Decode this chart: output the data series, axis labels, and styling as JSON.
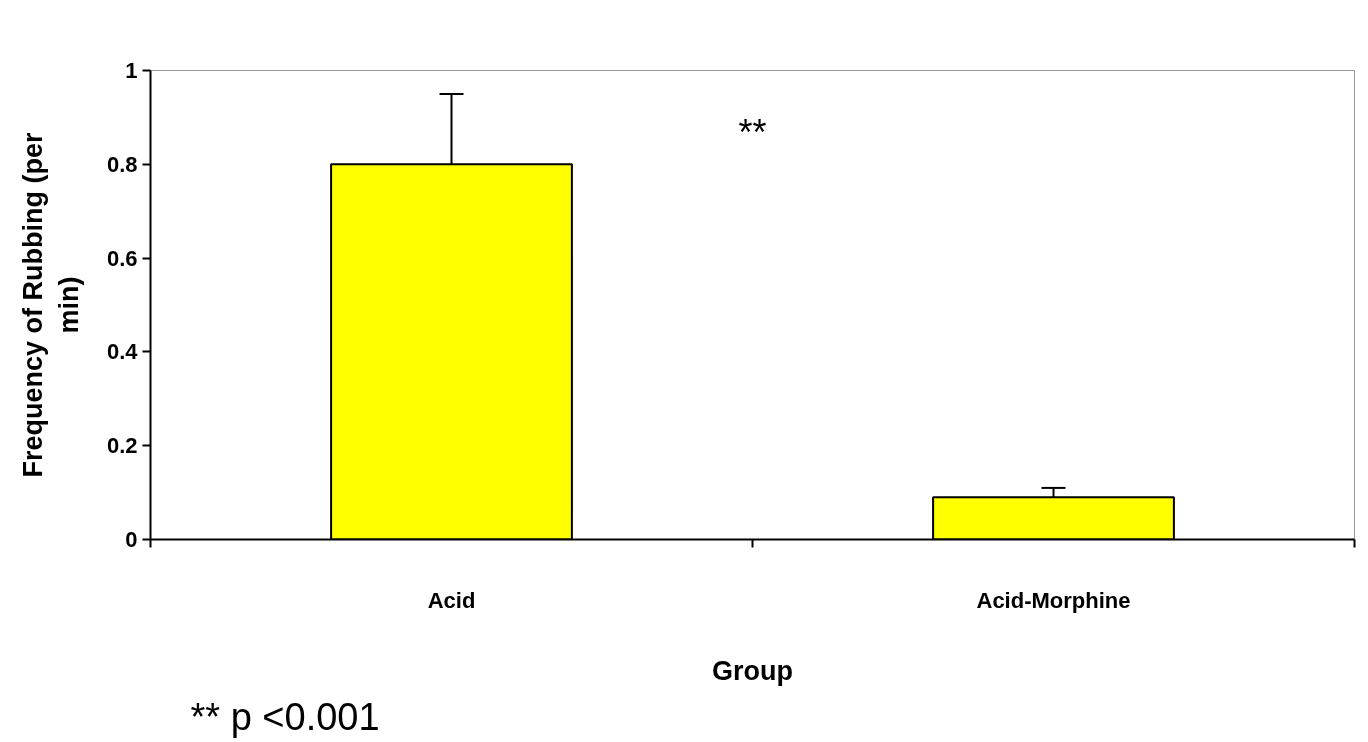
{
  "chart_data": {
    "type": "bar",
    "xlabel": "Group",
    "ylabel": "Frequency of Rubbing (per min)",
    "categories": [
      "Acid",
      "Acid-Morphine"
    ],
    "values": [
      0.8,
      0.09
    ],
    "color": "#ffff00",
    "errors": [
      [
        0.8,
        0.95
      ],
      [
        0.09,
        0.11
      ]
    ],
    "ylim": [
      0,
      1
    ],
    "yticks": [
      0,
      0.2,
      0.4,
      0.6,
      0.8,
      1
    ],
    "grid": false,
    "annotations": [
      "**",
      "** p <0.001"
    ]
  }
}
